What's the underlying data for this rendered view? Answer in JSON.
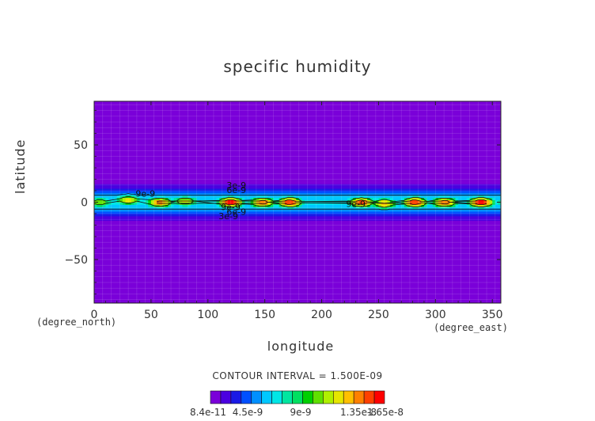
{
  "chart_data": {
    "type": "heatmap",
    "title": "specific humidity",
    "xlabel": "longitude",
    "ylabel": "latitude",
    "x_unit": "(degree_east)",
    "y_unit": "(degree_north)",
    "xlim": [
      0,
      357.5
    ],
    "ylim": [
      -88,
      88
    ],
    "xticks": [
      0,
      50,
      100,
      150,
      200,
      250,
      300,
      350
    ],
    "yticks": [
      -50,
      0,
      50
    ],
    "contour_interval_text": "CONTOUR INTERVAL = 1.500E-09",
    "contour_labels": [
      {
        "text": "9e-9",
        "lon": 45,
        "lat": 5
      },
      {
        "text": "3e-9",
        "lon": 125,
        "lat": 12
      },
      {
        "text": "6e-9",
        "lon": 125,
        "lat": 8
      },
      {
        "text": "9e-9",
        "lon": 120,
        "lat": -7
      },
      {
        "text": "6e-9",
        "lon": 125,
        "lat": -11
      },
      {
        "text": "3e-9",
        "lon": 118,
        "lat": -15
      },
      {
        "text": "9e-9",
        "lon": 230,
        "lat": -4
      }
    ],
    "colorbar": {
      "tick_labels": [
        "8.4e-11",
        "4.5e-9",
        "9e-9",
        "1.35e-8",
        "1.65e-8"
      ],
      "colors": [
        "#7a00d9",
        "#4b00e0",
        "#1a1ae6",
        "#0050ff",
        "#0090ff",
        "#00c8ff",
        "#00e6e6",
        "#00e6a0",
        "#00e060",
        "#00d000",
        "#60e000",
        "#b0f000",
        "#e6e600",
        "#ffc000",
        "#ff8000",
        "#ff4000",
        "#ff0000"
      ]
    },
    "field": {
      "background": 8.4e-11,
      "band_lat_halfwidth_deg": 22,
      "hotspots": [
        {
          "lon": 5,
          "lat": 0,
          "value": 1.1e-08
        },
        {
          "lon": 30,
          "lat": 2,
          "value": 1.25e-08
        },
        {
          "lon": 58,
          "lat": 0,
          "value": 1.45e-08
        },
        {
          "lon": 80,
          "lat": 1,
          "value": 1.2e-08
        },
        {
          "lon": 120,
          "lat": 0,
          "value": 1.65e-08
        },
        {
          "lon": 148,
          "lat": 0,
          "value": 1.5e-08
        },
        {
          "lon": 172,
          "lat": 0,
          "value": 1.6e-08
        },
        {
          "lon": 235,
          "lat": 0,
          "value": 1.55e-08
        },
        {
          "lon": 255,
          "lat": -1,
          "value": 1.35e-08
        },
        {
          "lon": 282,
          "lat": 0,
          "value": 1.6e-08
        },
        {
          "lon": 308,
          "lat": 0,
          "value": 1.5e-08
        },
        {
          "lon": 340,
          "lat": 0,
          "value": 1.65e-08
        }
      ]
    }
  }
}
